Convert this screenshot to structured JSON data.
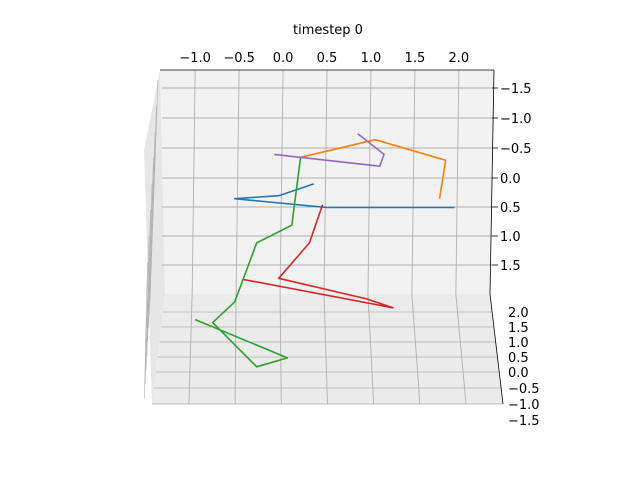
{
  "chart_data": {
    "type": "line",
    "title": "timestep 0",
    "projection": "3d",
    "grid": true,
    "legend": "none",
    "axes": {
      "top": {
        "ticks": [
          "−1.0",
          "−0.5",
          "0.0",
          "0.5",
          "1.0",
          "1.5",
          "2.0"
        ],
        "range": [
          -1.4,
          2.4
        ]
      },
      "right_upper": {
        "ticks": [
          "−1.5",
          "−1.0",
          "−0.5",
          "0.0",
          "0.5",
          "1.0",
          "1.5"
        ],
        "range": [
          -1.7,
          2.0
        ],
        "note": "printed top-to-bottom"
      },
      "right_lower": {
        "ticks": [
          "2.0",
          "1.5",
          "1.0",
          "0.5",
          "0.0",
          "−0.5",
          "−1.0",
          "−1.5"
        ],
        "range": [
          -1.5,
          2.0
        ],
        "note": "printed top-to-bottom"
      }
    },
    "series": [
      {
        "color": "#1f77b4",
        "points": [
          [
            1.95,
            0.5
          ],
          [
            1.15,
            0.5
          ],
          [
            0.5,
            0.5
          ],
          [
            -0.55,
            0.35
          ],
          [
            -0.05,
            0.3
          ],
          [
            0.35,
            0.1
          ]
        ]
      },
      {
        "color": "#ff7f0e",
        "points": [
          [
            1.78,
            0.35
          ],
          [
            1.85,
            -0.3
          ],
          [
            1.05,
            -0.65
          ],
          [
            0.2,
            -0.35
          ]
        ]
      },
      {
        "color": "#2ca02c",
        "points": [
          [
            0.2,
            -0.35
          ],
          [
            0.1,
            0.8
          ],
          [
            -0.3,
            1.1
          ],
          [
            -0.55,
            2.1
          ],
          [
            -0.8,
            2.45
          ],
          [
            -0.3,
            3.2
          ],
          [
            0.05,
            3.05
          ],
          [
            -1.0,
            2.4
          ]
        ]
      },
      {
        "color": "#d62728",
        "points": [
          [
            0.45,
            0.45
          ],
          [
            0.3,
            1.1
          ],
          [
            -0.05,
            1.7
          ],
          [
            0.95,
            2.05
          ],
          [
            1.25,
            2.2
          ],
          [
            -0.45,
            1.72
          ]
        ]
      },
      {
        "color": "#9467bd",
        "points": [
          [
            -0.1,
            -0.4
          ],
          [
            1.1,
            -0.2
          ],
          [
            1.15,
            -0.4
          ],
          [
            0.85,
            -0.75
          ]
        ]
      }
    ]
  }
}
